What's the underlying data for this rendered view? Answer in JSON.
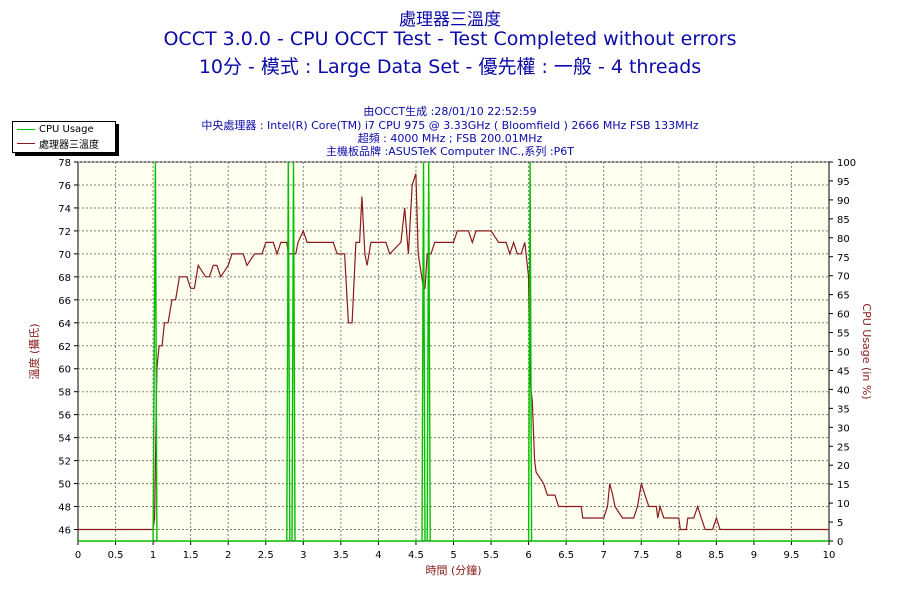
{
  "header": {
    "title_top": "處理器三溫度",
    "title_line2": "OCCT 3.0.0 - CPU OCCT Test - Test Completed without errors",
    "title_line3": "10分 - 模式 : Large Data Set - 優先權 : 一般 - 4 threads",
    "meta": [
      "由OCCT生成 :28/01/10 22:52:59",
      "中央處理器 : Intel(R) Core(TM) i7 CPU 975 @ 3.33GHz ( Bloomfield ) 2666 MHz FSB 133MHz",
      "超頻 : 4000 MHz ; FSB 200.01MHz",
      "主機板品牌 :ASUSTeK Computer INC.,系列 :P6T"
    ]
  },
  "legend": [
    {
      "label": "CPU Usage",
      "color": "#00c000"
    },
    {
      "label": "處理器三溫度",
      "color": "#8b1a1a"
    }
  ],
  "colors": {
    "plot_bg": "#fffff0",
    "grid": "#808080",
    "temp_line": "#8b1a1a",
    "cpu_line": "#00c000",
    "title_blue": "#0a0aa8",
    "axis_title_red": "#8b1a1a"
  },
  "chart_data": {
    "type": "line",
    "grid": true,
    "legend_position": "top-left",
    "xlabel": "時間 (分鐘)",
    "ylabel_left": "溫度 (攝氏)",
    "ylabel_right": "CPU Usage (in %)",
    "xlim": [
      0,
      10
    ],
    "ylim_left": [
      45,
      78
    ],
    "ylim_right": [
      0,
      100
    ],
    "x_ticks": [
      "0",
      "0.5",
      "1",
      "1.5",
      "2",
      "2.5",
      "3",
      "3.5",
      "4",
      "4.5",
      "5",
      "5.5",
      "6",
      "6.5",
      "7",
      "7.5",
      "8",
      "8.5",
      "9",
      "9.5",
      "10"
    ],
    "y_left_ticks": [
      "78",
      "76",
      "74",
      "72",
      "70",
      "68",
      "66",
      "64",
      "62",
      "60",
      "58",
      "56",
      "54",
      "52",
      "50",
      "48",
      "46"
    ],
    "y_right_ticks": [
      "100",
      "95",
      "90",
      "85",
      "80",
      "75",
      "70",
      "65",
      "60",
      "55",
      "50",
      "45",
      "40",
      "35",
      "30",
      "25",
      "20",
      "15",
      "10",
      "5",
      "0"
    ],
    "series": [
      {
        "name": "處理器三溫度",
        "axis": "left",
        "points": [
          [
            0,
            46
          ],
          [
            1.0,
            46
          ],
          [
            1.02,
            47
          ],
          [
            1.05,
            60
          ],
          [
            1.08,
            62
          ],
          [
            1.12,
            62
          ],
          [
            1.15,
            64
          ],
          [
            1.2,
            64
          ],
          [
            1.25,
            66
          ],
          [
            1.3,
            66
          ],
          [
            1.35,
            68
          ],
          [
            1.45,
            68
          ],
          [
            1.5,
            67
          ],
          [
            1.55,
            67
          ],
          [
            1.6,
            69
          ],
          [
            1.7,
            68
          ],
          [
            1.75,
            68
          ],
          [
            1.8,
            69
          ],
          [
            1.85,
            69
          ],
          [
            1.9,
            68
          ],
          [
            2.0,
            69
          ],
          [
            2.05,
            70
          ],
          [
            2.2,
            70
          ],
          [
            2.25,
            69
          ],
          [
            2.35,
            70
          ],
          [
            2.45,
            70
          ],
          [
            2.5,
            71
          ],
          [
            2.6,
            71
          ],
          [
            2.65,
            70
          ],
          [
            2.7,
            71
          ],
          [
            2.78,
            71
          ],
          [
            2.8,
            70
          ],
          [
            2.9,
            70
          ],
          [
            2.93,
            71
          ],
          [
            3.0,
            72
          ],
          [
            3.05,
            71
          ],
          [
            3.4,
            71
          ],
          [
            3.45,
            70
          ],
          [
            3.55,
            70
          ],
          [
            3.6,
            64
          ],
          [
            3.65,
            64
          ],
          [
            3.7,
            71
          ],
          [
            3.75,
            71
          ],
          [
            3.78,
            75
          ],
          [
            3.82,
            70
          ],
          [
            3.85,
            69
          ],
          [
            3.9,
            71
          ],
          [
            4.0,
            71
          ],
          [
            4.05,
            71
          ],
          [
            4.1,
            71
          ],
          [
            4.15,
            70
          ],
          [
            4.3,
            71
          ],
          [
            4.35,
            74
          ],
          [
            4.4,
            70
          ],
          [
            4.45,
            76
          ],
          [
            4.5,
            77
          ],
          [
            4.53,
            70
          ],
          [
            4.6,
            67
          ],
          [
            4.62,
            67
          ],
          [
            4.65,
            70
          ],
          [
            4.7,
            70
          ],
          [
            4.75,
            71
          ],
          [
            5.0,
            71
          ],
          [
            5.05,
            72
          ],
          [
            5.2,
            72
          ],
          [
            5.25,
            71
          ],
          [
            5.3,
            72
          ],
          [
            5.5,
            72
          ],
          [
            5.6,
            71
          ],
          [
            5.7,
            71
          ],
          [
            5.75,
            70
          ],
          [
            5.8,
            71
          ],
          [
            5.85,
            70
          ],
          [
            5.9,
            70
          ],
          [
            5.95,
            71
          ],
          [
            6.0,
            68
          ],
          [
            6.02,
            59
          ],
          [
            6.05,
            57
          ],
          [
            6.08,
            52
          ],
          [
            6.1,
            51
          ],
          [
            6.2,
            50
          ],
          [
            6.25,
            49
          ],
          [
            6.35,
            49
          ],
          [
            6.4,
            48
          ],
          [
            6.7,
            48
          ],
          [
            6.72,
            47
          ],
          [
            7.0,
            47
          ],
          [
            7.05,
            48
          ],
          [
            7.08,
            50
          ],
          [
            7.12,
            49
          ],
          [
            7.15,
            48
          ],
          [
            7.25,
            47
          ],
          [
            7.4,
            47
          ],
          [
            7.45,
            48
          ],
          [
            7.5,
            50
          ],
          [
            7.55,
            49
          ],
          [
            7.6,
            48
          ],
          [
            7.7,
            48
          ],
          [
            7.72,
            47
          ],
          [
            7.75,
            48
          ],
          [
            7.8,
            47
          ],
          [
            8.0,
            47
          ],
          [
            8.02,
            46
          ],
          [
            8.1,
            46
          ],
          [
            8.12,
            47
          ],
          [
            8.2,
            47
          ],
          [
            8.25,
            48
          ],
          [
            8.3,
            47
          ],
          [
            8.35,
            46
          ],
          [
            8.45,
            46
          ],
          [
            8.5,
            47
          ],
          [
            8.55,
            46
          ],
          [
            10,
            46
          ]
        ]
      },
      {
        "name": "CPU Usage",
        "axis": "right",
        "points": [
          [
            0,
            0
          ],
          [
            1.0,
            0
          ],
          [
            1.03,
            100
          ],
          [
            1.05,
            0
          ],
          [
            2.78,
            0
          ],
          [
            2.8,
            100
          ],
          [
            2.82,
            0
          ],
          [
            2.85,
            0
          ],
          [
            2.87,
            100
          ],
          [
            2.89,
            0
          ],
          [
            4.58,
            0
          ],
          [
            4.6,
            100
          ],
          [
            4.62,
            0
          ],
          [
            4.65,
            0
          ],
          [
            4.67,
            100
          ],
          [
            4.69,
            0
          ],
          [
            6.0,
            0
          ],
          [
            6.02,
            100
          ],
          [
            6.04,
            0
          ],
          [
            10,
            0
          ]
        ]
      }
    ]
  }
}
